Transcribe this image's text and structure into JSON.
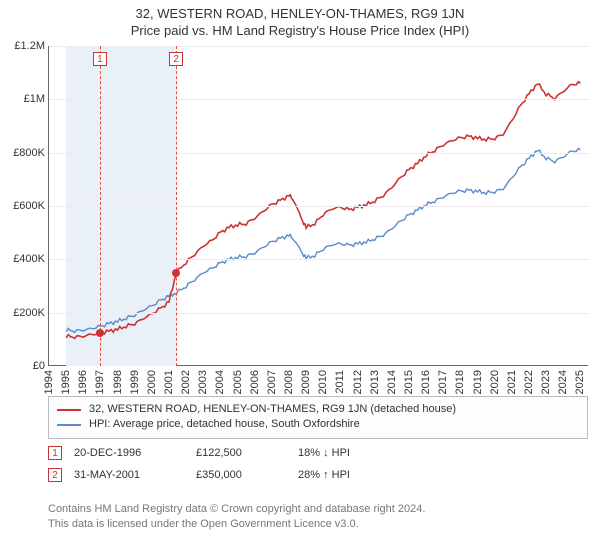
{
  "title_line1": "32, WESTERN ROAD, HENLEY-ON-THAMES, RG9 1JN",
  "title_line2": "Price paid vs. HM Land Registry's House Price Index (HPI)",
  "chart": {
    "type": "line",
    "background_color": "#ffffff",
    "grid_color": "#ececec",
    "axis_color": "#666666",
    "band_color": "#eaf0f7",
    "xlim": [
      1994,
      2025.5
    ],
    "ylim": [
      0,
      1200000
    ],
    "ytick_step": 200000,
    "ytick_labels": [
      "£0",
      "£200K",
      "£400K",
      "£600K",
      "£800K",
      "£1M",
      "£1.2M"
    ],
    "xtick_years": [
      1994,
      1995,
      1996,
      1997,
      1998,
      1999,
      2000,
      2001,
      2002,
      2003,
      2004,
      2005,
      2006,
      2007,
      2008,
      2009,
      2010,
      2011,
      2012,
      2013,
      2014,
      2015,
      2016,
      2017,
      2018,
      2019,
      2020,
      2021,
      2022,
      2023,
      2024,
      2025
    ],
    "label_fontsize": 11,
    "title_fontsize": 13,
    "bands": [
      {
        "from": 1995.0,
        "to": 2001.42
      }
    ],
    "vdashes": [
      {
        "x": 1996.97,
        "color": "#e74c3c"
      },
      {
        "x": 2001.42,
        "color": "#e74c3c"
      }
    ],
    "marker_boxes_in_plot": [
      {
        "x": 1996.97,
        "label": "1"
      },
      {
        "x": 2001.42,
        "label": "2"
      }
    ],
    "point_markers": [
      {
        "x": 1996.97,
        "y": 122500,
        "color": "#cc3333"
      },
      {
        "x": 2001.42,
        "y": 350000,
        "color": "#cc3333"
      }
    ],
    "series": [
      {
        "name": "property",
        "color": "#cc3333",
        "width": 1.6,
        "label": "32, WESTERN ROAD, HENLEY-ON-THAMES, RG9 1JN (detached house)",
        "data": [
          [
            1995.0,
            112000
          ],
          [
            1995.5,
            110000
          ],
          [
            1996.0,
            112000
          ],
          [
            1996.5,
            118000
          ],
          [
            1996.97,
            122500
          ],
          [
            1997.5,
            130000
          ],
          [
            1998.0,
            138000
          ],
          [
            1998.5,
            150000
          ],
          [
            1999.0,
            160000
          ],
          [
            1999.5,
            178000
          ],
          [
            2000.0,
            195000
          ],
          [
            2000.5,
            215000
          ],
          [
            2001.0,
            240000
          ],
          [
            2001.42,
            350000
          ],
          [
            2002.0,
            390000
          ],
          [
            2002.5,
            420000
          ],
          [
            2003.0,
            450000
          ],
          [
            2003.5,
            470000
          ],
          [
            2004.0,
            500000
          ],
          [
            2004.5,
            520000
          ],
          [
            2005.0,
            530000
          ],
          [
            2005.5,
            535000
          ],
          [
            2006.0,
            555000
          ],
          [
            2006.5,
            580000
          ],
          [
            2007.0,
            605000
          ],
          [
            2007.5,
            620000
          ],
          [
            2008.0,
            640000
          ],
          [
            2008.3,
            620000
          ],
          [
            2008.7,
            555000
          ],
          [
            2009.0,
            520000
          ],
          [
            2009.5,
            535000
          ],
          [
            2010.0,
            570000
          ],
          [
            2010.5,
            590000
          ],
          [
            2011.0,
            595000
          ],
          [
            2011.5,
            585000
          ],
          [
            2012.0,
            595000
          ],
          [
            2012.5,
            605000
          ],
          [
            2013.0,
            620000
          ],
          [
            2013.5,
            640000
          ],
          [
            2014.0,
            670000
          ],
          [
            2014.5,
            705000
          ],
          [
            2015.0,
            735000
          ],
          [
            2015.5,
            760000
          ],
          [
            2016.0,
            790000
          ],
          [
            2016.5,
            810000
          ],
          [
            2017.0,
            830000
          ],
          [
            2017.5,
            845000
          ],
          [
            2018.0,
            855000
          ],
          [
            2018.5,
            860000
          ],
          [
            2019.0,
            855000
          ],
          [
            2019.5,
            850000
          ],
          [
            2020.0,
            855000
          ],
          [
            2020.5,
            870000
          ],
          [
            2021.0,
            920000
          ],
          [
            2021.5,
            975000
          ],
          [
            2022.0,
            1020000
          ],
          [
            2022.5,
            1060000
          ],
          [
            2023.0,
            1020000
          ],
          [
            2023.5,
            1005000
          ],
          [
            2024.0,
            1030000
          ],
          [
            2024.5,
            1055000
          ],
          [
            2025.0,
            1060000
          ]
        ]
      },
      {
        "name": "hpi",
        "color": "#5b8bc9",
        "width": 1.4,
        "label": "HPI: Average price, detached house, South Oxfordshire",
        "data": [
          [
            1995.0,
            135000
          ],
          [
            1995.5,
            133000
          ],
          [
            1996.0,
            135000
          ],
          [
            1996.5,
            140000
          ],
          [
            1997.0,
            148000
          ],
          [
            1997.5,
            158000
          ],
          [
            1998.0,
            168000
          ],
          [
            1998.5,
            180000
          ],
          [
            1999.0,
            192000
          ],
          [
            1999.5,
            210000
          ],
          [
            2000.0,
            225000
          ],
          [
            2000.5,
            245000
          ],
          [
            2001.0,
            262000
          ],
          [
            2001.42,
            275000
          ],
          [
            2002.0,
            300000
          ],
          [
            2002.5,
            325000
          ],
          [
            2003.0,
            350000
          ],
          [
            2003.5,
            365000
          ],
          [
            2004.0,
            385000
          ],
          [
            2004.5,
            400000
          ],
          [
            2005.0,
            408000
          ],
          [
            2005.5,
            412000
          ],
          [
            2006.0,
            425000
          ],
          [
            2006.5,
            445000
          ],
          [
            2007.0,
            465000
          ],
          [
            2007.5,
            478000
          ],
          [
            2008.0,
            490000
          ],
          [
            2008.3,
            475000
          ],
          [
            2008.7,
            430000
          ],
          [
            2009.0,
            405000
          ],
          [
            2009.5,
            415000
          ],
          [
            2010.0,
            440000
          ],
          [
            2010.5,
            455000
          ],
          [
            2011.0,
            458000
          ],
          [
            2011.5,
            452000
          ],
          [
            2012.0,
            458000
          ],
          [
            2012.5,
            465000
          ],
          [
            2013.0,
            478000
          ],
          [
            2013.5,
            492000
          ],
          [
            2014.0,
            515000
          ],
          [
            2014.5,
            542000
          ],
          [
            2015.0,
            565000
          ],
          [
            2015.5,
            585000
          ],
          [
            2016.0,
            605000
          ],
          [
            2016.5,
            620000
          ],
          [
            2017.0,
            635000
          ],
          [
            2017.5,
            648000
          ],
          [
            2018.0,
            655000
          ],
          [
            2018.5,
            658000
          ],
          [
            2019.0,
            655000
          ],
          [
            2019.5,
            650000
          ],
          [
            2020.0,
            655000
          ],
          [
            2020.5,
            665000
          ],
          [
            2021.0,
            705000
          ],
          [
            2021.5,
            745000
          ],
          [
            2022.0,
            778000
          ],
          [
            2022.5,
            810000
          ],
          [
            2023.0,
            780000
          ],
          [
            2023.5,
            768000
          ],
          [
            2024.0,
            785000
          ],
          [
            2024.5,
            805000
          ],
          [
            2025.0,
            810000
          ]
        ]
      }
    ]
  },
  "legend": {
    "items": [
      {
        "color": "#cc3333",
        "label": "32, WESTERN ROAD, HENLEY-ON-THAMES, RG9 1JN (detached house)"
      },
      {
        "color": "#5b8bc9",
        "label": "HPI: Average price, detached house, South Oxfordshire"
      }
    ]
  },
  "annotations": [
    {
      "n": "1",
      "date": "20-DEC-1996",
      "price": "£122,500",
      "delta": "18% ↓ HPI"
    },
    {
      "n": "2",
      "date": "31-MAY-2001",
      "price": "£350,000",
      "delta": "28% ↑ HPI"
    }
  ],
  "footer_line1": "Contains HM Land Registry data © Crown copyright and database right 2024.",
  "footer_line2": "This data is licensed under the Open Government Licence v3.0."
}
